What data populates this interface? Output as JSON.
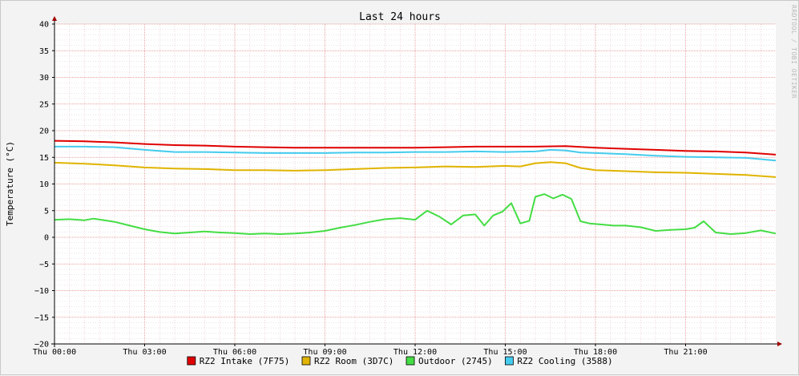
{
  "chart_data": {
    "type": "line",
    "title": "Last 24 hours",
    "ylabel": "Temperature (°C)",
    "xlabel": "",
    "watermark": "RRDTOOL / TOBI OETIKER",
    "ylim": [
      -20,
      40
    ],
    "y_ticks": [
      "40",
      "35",
      "30",
      "25",
      "20",
      "15",
      "10",
      "5",
      "0",
      "−5",
      "−10",
      "−15",
      "−20"
    ],
    "y_tick_values": [
      40,
      35,
      30,
      25,
      20,
      15,
      10,
      5,
      0,
      -5,
      -10,
      -15,
      -20
    ],
    "x_hours_range": [
      0,
      24
    ],
    "x_ticks": [
      "Thu 00:00",
      "Thu 03:00",
      "Thu 06:00",
      "Thu 09:00",
      "Thu 12:00",
      "Thu 15:00",
      "Thu 18:00",
      "Thu 21:00"
    ],
    "x_tick_hours": [
      0,
      3,
      6,
      9,
      12,
      15,
      18,
      21
    ],
    "grid": true,
    "legend_position": "bottom",
    "series": [
      {
        "name": "RZ2 Intake (7F75)",
        "color": "#e00000",
        "x": [
          0,
          1,
          2,
          3,
          4,
          5,
          6,
          7,
          8,
          9,
          10,
          11,
          12,
          13,
          14,
          15,
          16,
          17,
          18,
          19,
          20,
          21,
          22,
          23,
          24
        ],
        "values": [
          18.1,
          18.0,
          17.8,
          17.5,
          17.3,
          17.2,
          17.0,
          16.9,
          16.8,
          16.8,
          16.8,
          16.8,
          16.8,
          16.9,
          17.0,
          17.0,
          17.0,
          17.1,
          16.8,
          16.6,
          16.4,
          16.2,
          16.1,
          15.9,
          15.5
        ]
      },
      {
        "name": "RZ2 Room (3D7C)",
        "color": "#e0b400",
        "x": [
          0,
          1,
          2,
          3,
          4,
          5,
          6,
          7,
          8,
          9,
          10,
          11,
          12,
          13,
          14,
          15,
          15.5,
          16,
          16.5,
          17,
          17.5,
          18,
          19,
          20,
          21,
          22,
          23,
          24
        ],
        "values": [
          14.0,
          13.8,
          13.5,
          13.1,
          12.9,
          12.8,
          12.6,
          12.6,
          12.5,
          12.6,
          12.8,
          13.0,
          13.1,
          13.3,
          13.2,
          13.4,
          13.3,
          13.9,
          14.1,
          13.9,
          13.0,
          12.6,
          12.4,
          12.2,
          12.1,
          11.9,
          11.7,
          11.3
        ]
      },
      {
        "name": "Outdoor (2745)",
        "color": "#44dd44",
        "x": [
          0,
          0.5,
          1,
          1.3,
          2,
          2.5,
          3,
          3.5,
          4,
          4.5,
          5,
          5.5,
          6,
          6.5,
          7,
          7.5,
          8,
          8.5,
          9,
          9.5,
          10,
          10.5,
          11,
          11.5,
          12,
          12.4,
          12.8,
          13.2,
          13.6,
          14,
          14.3,
          14.6,
          14.9,
          15.2,
          15.5,
          15.8,
          16,
          16.3,
          16.6,
          16.9,
          17.2,
          17.5,
          17.8,
          18.2,
          18.6,
          19,
          19.5,
          20,
          20.5,
          21,
          21.3,
          21.6,
          22,
          22.5,
          23,
          23.5,
          24
        ],
        "values": [
          3.3,
          3.4,
          3.2,
          3.5,
          2.9,
          2.2,
          1.5,
          1.0,
          0.7,
          0.9,
          1.1,
          0.9,
          0.8,
          0.6,
          0.7,
          0.6,
          0.7,
          0.9,
          1.2,
          1.8,
          2.3,
          2.9,
          3.4,
          3.6,
          3.3,
          5.0,
          3.9,
          2.4,
          4.1,
          4.3,
          2.2,
          4.1,
          4.8,
          6.4,
          2.6,
          3.1,
          7.6,
          8.1,
          7.3,
          8.0,
          7.2,
          3.0,
          2.6,
          2.4,
          2.2,
          2.2,
          1.9,
          1.2,
          1.4,
          1.5,
          1.8,
          3.0,
          0.9,
          0.6,
          0.8,
          1.3,
          0.7
        ]
      },
      {
        "name": "RZ2 Cooling (3588)",
        "color": "#44ccee",
        "x": [
          0,
          1,
          2,
          3,
          4,
          5,
          6,
          7,
          8,
          9,
          10,
          11,
          12,
          13,
          14,
          15,
          16,
          16.5,
          17,
          17.5,
          18,
          19,
          20,
          21,
          22,
          23,
          24
        ],
        "values": [
          17.0,
          17.0,
          16.9,
          16.4,
          16.0,
          16.0,
          15.9,
          15.8,
          15.8,
          15.8,
          15.9,
          15.9,
          16.0,
          16.0,
          16.1,
          16.0,
          16.1,
          16.4,
          16.3,
          15.9,
          15.8,
          15.6,
          15.3,
          15.1,
          15.0,
          14.9,
          14.4
        ]
      }
    ]
  }
}
